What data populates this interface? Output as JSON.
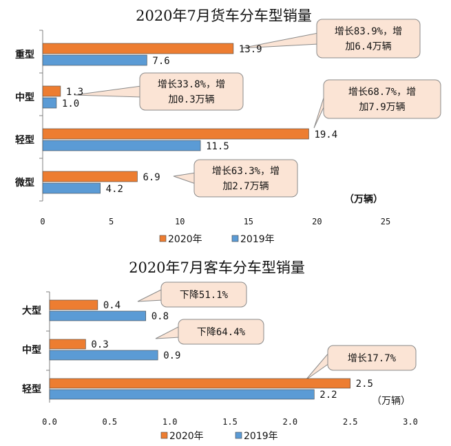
{
  "colors": {
    "series_2020": "#ED7D31",
    "series_2019": "#5B9BD5",
    "callout_fill": "#FBE4D5",
    "callout_stroke": "#8A8A8A",
    "axis": "#7F7F7F"
  },
  "chart_data": [
    {
      "type": "bar",
      "orientation": "horizontal",
      "title": "2020年7月货车分车型销量",
      "categories": [
        "重型",
        "中型",
        "轻型",
        "微型"
      ],
      "series": [
        {
          "name": "2020年",
          "values": [
            13.9,
            1.3,
            19.4,
            6.9
          ],
          "labels": [
            "13.9",
            "1.3",
            "19.4",
            "6.9"
          ]
        },
        {
          "name": "2019年",
          "values": [
            7.6,
            1.0,
            11.5,
            4.2
          ],
          "labels": [
            "7.6",
            "1.0",
            "11.5",
            "4.2"
          ]
        }
      ],
      "xlim": [
        0,
        25
      ],
      "xticks": [
        "0",
        "5",
        "10",
        "15",
        "20",
        "25"
      ],
      "unit_label": "（万辆）",
      "legend_position": "bottom",
      "annotations": [
        {
          "category": "重型",
          "lines": [
            "增长83.9%，增",
            "加6.4万辆"
          ]
        },
        {
          "category": "中型",
          "lines": [
            "增长33.8%，增",
            "加0.3万辆"
          ]
        },
        {
          "category": "轻型",
          "lines": [
            "增长68.7%，增",
            "加7.9万辆"
          ]
        },
        {
          "category": "微型",
          "lines": [
            "增长63.3%，增",
            "加2.7万辆"
          ]
        }
      ]
    },
    {
      "type": "bar",
      "orientation": "horizontal",
      "title": "2020年7月客车分车型销量",
      "categories": [
        "大型",
        "中型",
        "轻型"
      ],
      "series": [
        {
          "name": "2020年",
          "values": [
            0.4,
            0.3,
            2.5
          ],
          "labels": [
            "0.4",
            "0.3",
            "2.5"
          ]
        },
        {
          "name": "2019年",
          "values": [
            0.8,
            0.9,
            2.2
          ],
          "labels": [
            "0.8",
            "0.9",
            "2.2"
          ]
        }
      ],
      "xlim": [
        0,
        3.0
      ],
      "xticks": [
        "0.0",
        "0.5",
        "1.0",
        "1.5",
        "2.0",
        "2.5",
        "3.0"
      ],
      "unit_label": "（万辆）",
      "legend_position": "bottom",
      "annotations": [
        {
          "category": "大型",
          "lines": [
            "下降51.1%"
          ]
        },
        {
          "category": "中型",
          "lines": [
            "下降64.4%"
          ]
        },
        {
          "category": "轻型",
          "lines": [
            "增长17.7%"
          ]
        }
      ]
    }
  ]
}
